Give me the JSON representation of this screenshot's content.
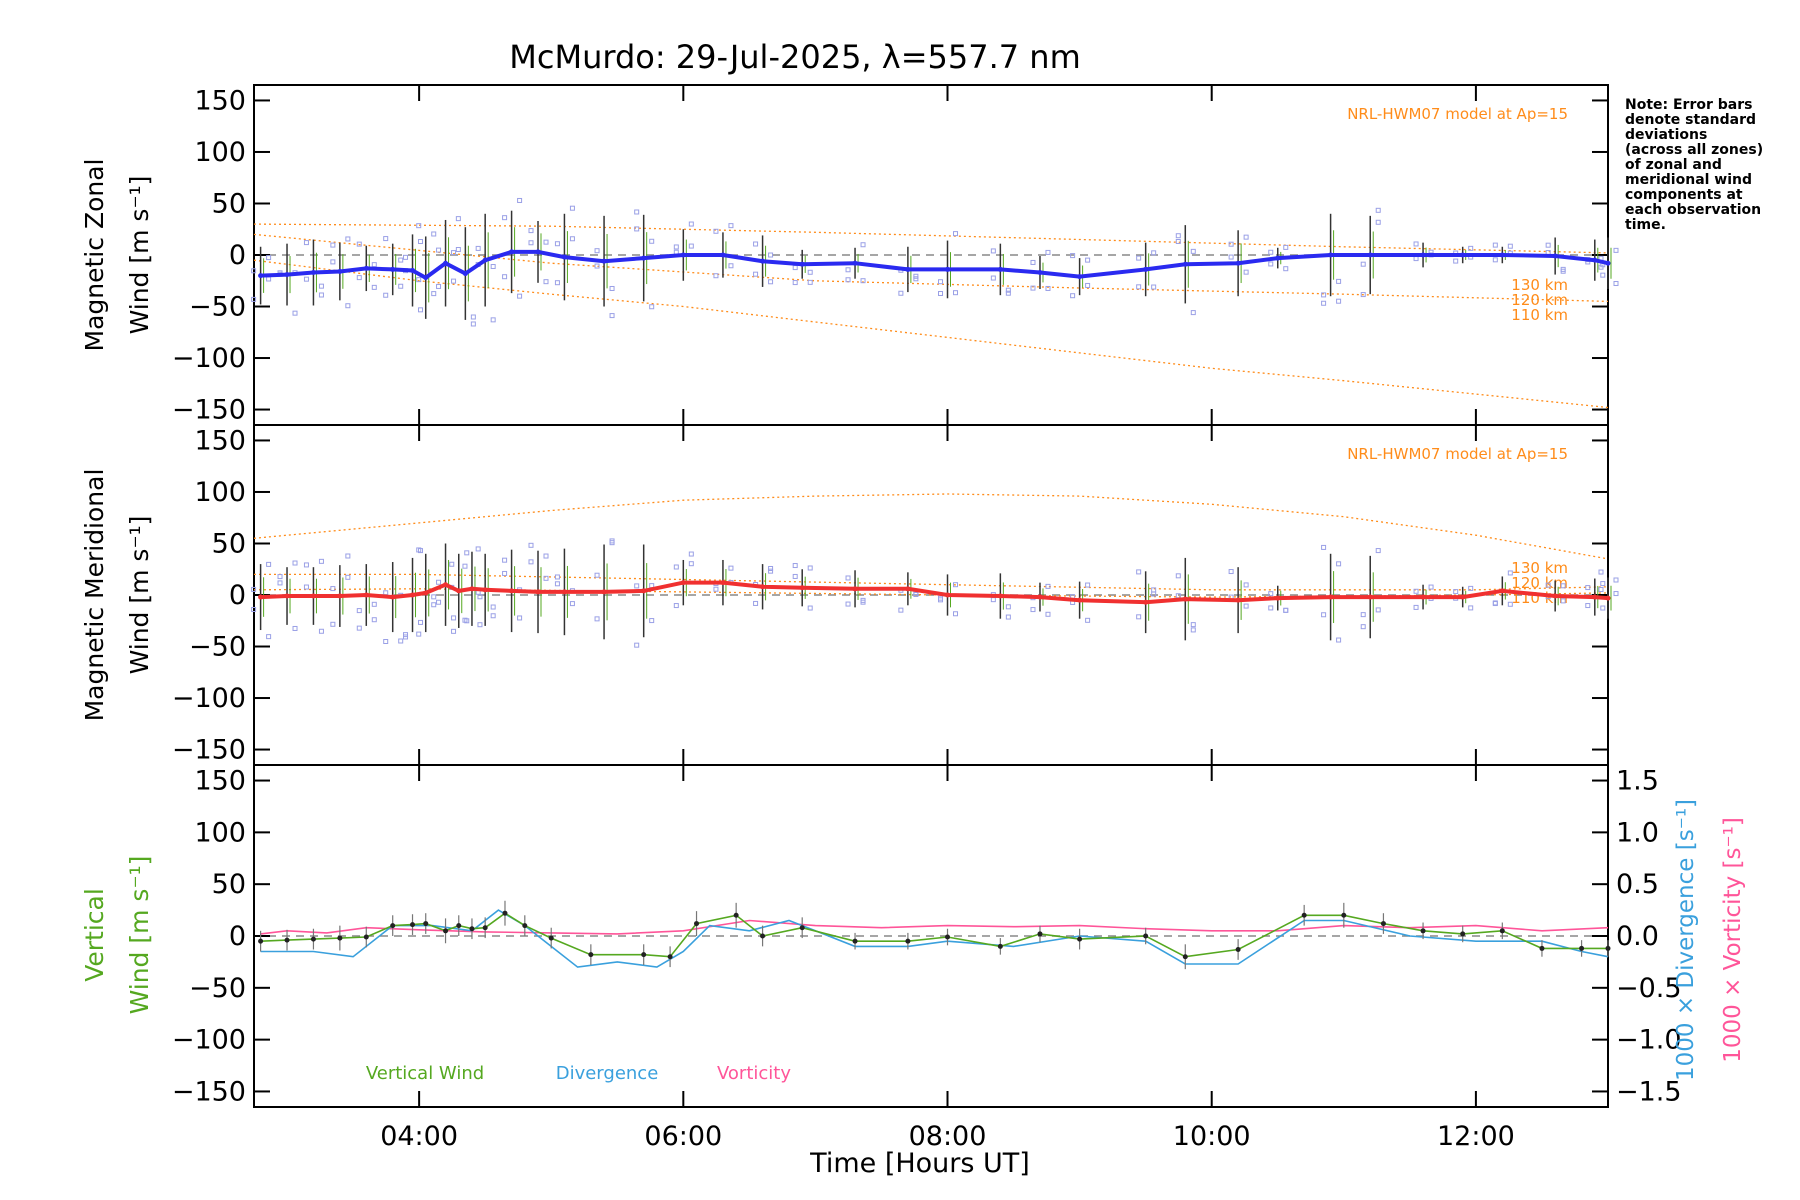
{
  "chart_data": {
    "type": "line",
    "title": "McMurdo: 29-Jul-2025, λ=557.7 nm",
    "xlabel": "Time [Hours UT]",
    "xlim": [
      2.75,
      13.0
    ],
    "xticks": [
      4,
      6,
      8,
      10,
      12
    ],
    "xtick_labels": [
      "04:00",
      "06:00",
      "08:00",
      "10:00",
      "12:00"
    ],
    "yticks": [
      -150,
      -100,
      -50,
      0,
      50,
      100,
      150
    ],
    "ytick_labels": [
      "−150",
      "−100",
      "−50",
      "0",
      "50",
      "100",
      "150"
    ],
    "note": "Note: Error bars denote standard deviations (across all zones) of zonal and meridional wind components at each observation time.",
    "note_lines": [
      "Note: Error bars",
      "denote standard",
      "deviations",
      "(across all zones)",
      "of zonal and",
      "meridional wind",
      "components at",
      "each observation",
      "time."
    ],
    "colors": {
      "zonal": "#2a2af0",
      "meridional": "#f03030",
      "vertical": "#55a820",
      "divergence": "#3aa0dd",
      "vorticity": "#ff5599",
      "model": "#ff8c1a",
      "scatter": "#9aa0e6"
    },
    "panels": [
      {
        "id": "zonal",
        "ylabel_line1": "Magnetic Zonal",
        "ylabel_line2": "Wind [m s⁻¹]",
        "ylim": [
          -165,
          165
        ],
        "model_label": "NRL-HWM07 model at Ap=15",
        "model_curves": [
          {
            "label": "130 km",
            "x": [
              2.75,
              5,
              7,
              9,
              11,
              13
            ],
            "values": [
              30,
              28,
              22,
              15,
              8,
              2
            ]
          },
          {
            "label": "120 km",
            "x": [
              2.75,
              5,
              7,
              9,
              11,
              13
            ],
            "values": [
              20,
              -8,
              -25,
              -32,
              -38,
              -45
            ]
          },
          {
            "label": "110 km",
            "x": [
              2.75,
              4,
              5,
              6,
              7,
              8,
              9,
              10,
              11,
              12,
              13
            ],
            "values": [
              -5,
              -25,
              -38,
              -50,
              -65,
              -80,
              -95,
              -110,
              -122,
              -135,
              -148
            ]
          }
        ],
        "series": [
          {
            "name": "Magnetic Zonal Wind",
            "x": [
              2.8,
              3.0,
              3.2,
              3.4,
              3.6,
              3.8,
              3.95,
              4.05,
              4.2,
              4.35,
              4.5,
              4.7,
              4.9,
              5.1,
              5.4,
              5.7,
              6.0,
              6.3,
              6.6,
              6.9,
              7.3,
              7.7,
              8.0,
              8.4,
              8.7,
              9.0,
              9.5,
              9.8,
              10.2,
              10.5,
              10.9,
              11.2,
              11.6,
              11.9,
              12.2,
              12.6,
              12.9,
              13.0
            ],
            "values": [
              -20,
              -19,
              -17,
              -16,
              -13,
              -14,
              -15,
              -22,
              -8,
              -18,
              -5,
              3,
              3,
              -2,
              -6,
              -3,
              0,
              0,
              -6,
              -9,
              -8,
              -14,
              -14,
              -14,
              -17,
              -21,
              -14,
              -9,
              -8,
              -3,
              0,
              0,
              0,
              0,
              0,
              -1,
              -5,
              -8
            ],
            "errors": [
              28,
              30,
              32,
              28,
              22,
              25,
              35,
              40,
              42,
              45,
              45,
              40,
              30,
              42,
              44,
              42,
              25,
              22,
              25,
              14,
              15,
              22,
              28,
              25,
              16,
              18,
              26,
              38,
              32,
              10,
              40,
              38,
              12,
              8,
              8,
              18,
              20,
              25
            ]
          }
        ]
      },
      {
        "id": "meridional",
        "ylabel_line1": "Magnetic Meridional",
        "ylabel_line2": "Wind [m s⁻¹]",
        "ylim": [
          -165,
          165
        ],
        "model_label": "NRL-HWM07 model at Ap=15",
        "model_curves": [
          {
            "label": "130 km",
            "x": [
              2.75,
              4,
              5,
              6,
              7,
              8,
              9,
              10,
              11,
              12,
              13
            ],
            "values": [
              55,
              70,
              82,
              92,
              96,
              98,
              96,
              88,
              76,
              58,
              35
            ]
          },
          {
            "label": "120 km",
            "x": [
              2.75,
              4,
              6,
              8,
              10,
              12,
              13
            ],
            "values": [
              20,
              20,
              15,
              10,
              5,
              5,
              8
            ]
          },
          {
            "label": "110 km",
            "x": [
              2.75,
              4,
              6,
              8,
              10,
              12,
              13
            ],
            "values": [
              5,
              6,
              3,
              0,
              -2,
              0,
              2
            ]
          }
        ],
        "series": [
          {
            "name": "Magnetic Meridional Wind",
            "x": [
              2.8,
              3.0,
              3.2,
              3.4,
              3.6,
              3.8,
              3.95,
              4.05,
              4.2,
              4.3,
              4.4,
              4.5,
              4.7,
              4.9,
              5.1,
              5.4,
              5.7,
              6.0,
              6.3,
              6.6,
              6.9,
              7.3,
              7.7,
              8.0,
              8.4,
              8.7,
              9.0,
              9.5,
              9.8,
              10.2,
              10.5,
              10.9,
              11.2,
              11.6,
              11.9,
              12.2,
              12.6,
              12.9,
              13.0
            ],
            "values": [
              -2,
              -1,
              -1,
              -1,
              0,
              -2,
              0,
              2,
              10,
              4,
              6,
              5,
              4,
              3,
              3,
              3,
              4,
              12,
              12,
              8,
              7,
              6,
              6,
              0,
              -1,
              -2,
              -5,
              -7,
              -4,
              -5,
              -3,
              -2,
              -2,
              -2,
              -2,
              4,
              -1,
              -2,
              -3
            ],
            "errors": [
              32,
              28,
              28,
              30,
              30,
              34,
              36,
              38,
              40,
              36,
              36,
              35,
              40,
              40,
              42,
              46,
              45,
              22,
              22,
              22,
              18,
              18,
              16,
              20,
              22,
              14,
              18,
              30,
              40,
              32,
              12,
              42,
              40,
              12,
              10,
              14,
              15,
              18,
              20
            ]
          }
        ]
      },
      {
        "id": "vertical",
        "ylabel_line1": "Vertical",
        "ylabel_line2": "Wind [m s⁻¹]",
        "ylim": [
          -165,
          165
        ],
        "right_ylim": [
          -1.65,
          1.65
        ],
        "right_ticks": [
          -1.5,
          -1.0,
          -0.5,
          0.0,
          0.5,
          1.0,
          1.5
        ],
        "right_tick_labels": [
          "−1.5",
          "−1.0",
          "−0.5",
          "0.0",
          "0.5",
          "1.0",
          "1.5"
        ],
        "right_label_divergence": "1000 × Divergence [s⁻¹]",
        "right_label_vorticity": "1000 × Vorticity [s⁻¹]",
        "legend": [
          "Vertical Wind",
          "Divergence",
          "Vorticity"
        ],
        "series": [
          {
            "name": "Vertical Wind",
            "x": [
              2.8,
              3.0,
              3.2,
              3.4,
              3.6,
              3.8,
              3.95,
              4.05,
              4.2,
              4.3,
              4.4,
              4.5,
              4.65,
              4.8,
              5.0,
              5.3,
              5.7,
              5.9,
              6.1,
              6.4,
              6.6,
              6.9,
              7.3,
              7.7,
              8.0,
              8.4,
              8.7,
              9.0,
              9.5,
              9.8,
              10.2,
              10.7,
              11.0,
              11.3,
              11.6,
              11.9,
              12.2,
              12.5,
              12.8,
              13.0
            ],
            "values": [
              -5,
              -4,
              -3,
              -2,
              -1,
              10,
              11,
              12,
              5,
              10,
              7,
              8,
              22,
              10,
              -2,
              -18,
              -18,
              -20,
              12,
              20,
              0,
              8,
              -5,
              -5,
              -1,
              -10,
              2,
              -3,
              0,
              -20,
              -13,
              20,
              20,
              12,
              5,
              2,
              5,
              -12,
              -12,
              -12
            ],
            "errors": [
              10,
              10,
              10,
              12,
              10,
              10,
              10,
              10,
              12,
              10,
              10,
              10,
              12,
              10,
              10,
              10,
              10,
              10,
              12,
              12,
              10,
              10,
              8,
              8,
              8,
              8,
              8,
              10,
              8,
              12,
              10,
              10,
              12,
              10,
              8,
              8,
              8,
              8,
              8,
              8
            ]
          },
          {
            "name": "Divergence",
            "x": [
              2.8,
              3.2,
              3.5,
              3.8,
              4.1,
              4.4,
              4.6,
              4.8,
              5.0,
              5.2,
              5.5,
              5.8,
              6.0,
              6.2,
              6.5,
              6.8,
              7.0,
              7.3,
              7.7,
              8.0,
              8.5,
              9.0,
              9.5,
              9.8,
              10.2,
              10.7,
              11.0,
              11.5,
              12.0,
              12.5,
              12.8,
              13.0
            ],
            "values": [
              -0.15,
              -0.15,
              -0.2,
              0.1,
              0.1,
              0.05,
              0.25,
              0.1,
              -0.1,
              -0.3,
              -0.25,
              -0.3,
              -0.15,
              0.1,
              0.05,
              0.15,
              0.05,
              -0.1,
              -0.1,
              -0.05,
              -0.1,
              0.0,
              -0.05,
              -0.27,
              -0.27,
              0.15,
              0.15,
              0.0,
              -0.05,
              -0.05,
              -0.15,
              -0.2
            ]
          },
          {
            "name": "Vorticity",
            "x": [
              2.8,
              3.0,
              3.3,
              3.6,
              4.0,
              4.5,
              5.0,
              5.5,
              6.0,
              6.5,
              7.0,
              7.5,
              8.0,
              8.5,
              9.0,
              9.5,
              10.0,
              10.5,
              11.0,
              11.5,
              12.0,
              12.5,
              13.0
            ],
            "values": [
              0.02,
              0.05,
              0.03,
              0.08,
              0.06,
              0.04,
              0.03,
              0.02,
              0.05,
              0.15,
              0.1,
              0.08,
              0.1,
              0.09,
              0.1,
              0.07,
              0.05,
              0.05,
              0.1,
              0.08,
              0.1,
              0.05,
              0.08
            ]
          }
        ]
      }
    ]
  }
}
